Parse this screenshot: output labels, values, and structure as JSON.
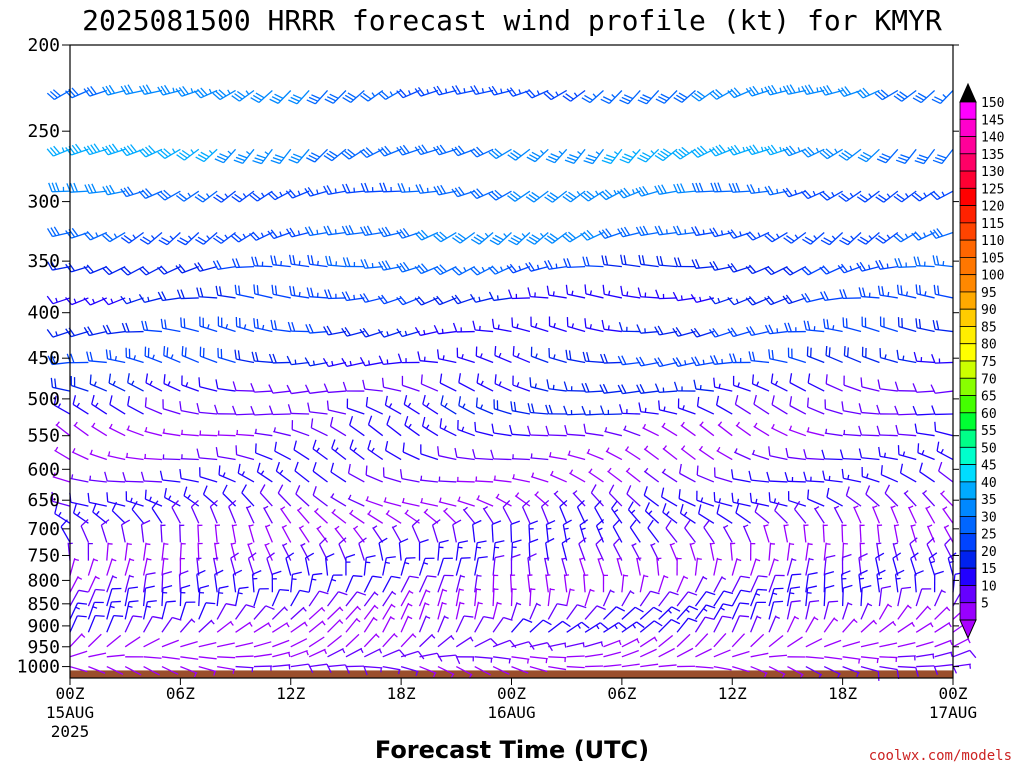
{
  "title": "2025081500 HRRR forecast wind profile (kt) for KMYR",
  "xlabel": "Forecast Time (UTC)",
  "credit": "coolwx.com/models",
  "chart_data": {
    "type": "wind-barb time-height profile",
    "y_axis": {
      "label": "",
      "scale": "log-pressure, inverted",
      "range_hpa": [
        1030,
        200
      ],
      "ticks": [
        "200",
        "250",
        "300",
        "350",
        "400",
        "450",
        "500",
        "550",
        "600",
        "650",
        "700",
        "750",
        "800",
        "850",
        "900",
        "950",
        "1000"
      ]
    },
    "x_axis": {
      "range_hours": [
        0,
        48
      ],
      "ticks": [
        {
          "hour": 0,
          "label": "00Z",
          "sub1": "15AUG",
          "sub2": "2025"
        },
        {
          "hour": 6,
          "label": "06Z",
          "sub1": "",
          "sub2": ""
        },
        {
          "hour": 12,
          "label": "12Z",
          "sub1": "",
          "sub2": ""
        },
        {
          "hour": 18,
          "label": "18Z",
          "sub1": "",
          "sub2": ""
        },
        {
          "hour": 24,
          "label": "00Z",
          "sub1": "16AUG",
          "sub2": ""
        },
        {
          "hour": 30,
          "label": "06Z",
          "sub1": "",
          "sub2": ""
        },
        {
          "hour": 36,
          "label": "12Z",
          "sub1": "",
          "sub2": ""
        },
        {
          "hour": 42,
          "label": "18Z",
          "sub1": "",
          "sub2": ""
        },
        {
          "hour": 48,
          "label": "00Z",
          "sub1": "17AUG",
          "sub2": ""
        }
      ]
    },
    "barb_time_step_hours": 1,
    "barb_levels_hpa": [
      225,
      262,
      292,
      325,
      355,
      385,
      420,
      455,
      490,
      520,
      550,
      585,
      620,
      660,
      690,
      725,
      760,
      790,
      825,
      855,
      885,
      915,
      950,
      975,
      1000
    ],
    "wind_speed_kt_by_level": [
      {
        "p": 225,
        "speed": 30,
        "dir_from": 240
      },
      {
        "p": 262,
        "speed": 35,
        "dir_from": 235
      },
      {
        "p": 292,
        "speed": 30,
        "dir_from": 250
      },
      {
        "p": 325,
        "speed": 30,
        "dir_from": 245
      },
      {
        "p": 355,
        "speed": 25,
        "dir_from": 260
      },
      {
        "p": 385,
        "speed": 20,
        "dir_from": 265
      },
      {
        "p": 420,
        "speed": 20,
        "dir_from": 270
      },
      {
        "p": 455,
        "speed": 20,
        "dir_from": 275
      },
      {
        "p": 490,
        "speed": 15,
        "dir_from": 280
      },
      {
        "p": 520,
        "speed": 15,
        "dir_from": 285
      },
      {
        "p": 550,
        "speed": 10,
        "dir_from": 290
      },
      {
        "p": 585,
        "speed": 10,
        "dir_from": 290
      },
      {
        "p": 620,
        "speed": 10,
        "dir_from": 290
      },
      {
        "p": 660,
        "speed": 10,
        "dir_from": 300
      },
      {
        "p": 690,
        "speed": 10,
        "dir_from": 320
      },
      {
        "p": 725,
        "speed": 10,
        "dir_from": 340
      },
      {
        "p": 760,
        "speed": 10,
        "dir_from": 350
      },
      {
        "p": 790,
        "speed": 10,
        "dir_from": 0
      },
      {
        "p": 825,
        "speed": 10,
        "dir_from": 10
      },
      {
        "p": 855,
        "speed": 10,
        "dir_from": 20
      },
      {
        "p": 885,
        "speed": 10,
        "dir_from": 30
      },
      {
        "p": 915,
        "speed": 10,
        "dir_from": 40
      },
      {
        "p": 950,
        "speed": 5,
        "dir_from": 60
      },
      {
        "p": 975,
        "speed": 5,
        "dir_from": 80
      },
      {
        "p": 1000,
        "speed": 5,
        "dir_from": 100
      }
    ],
    "ground_level_hpa": 1010,
    "colorbar": {
      "labels": [
        "150",
        "145",
        "140",
        "135",
        "130",
        "125",
        "120",
        "115",
        "110",
        "105",
        "100",
        "95",
        "90",
        "85",
        "80",
        "75",
        "70",
        "65",
        "60",
        "55",
        "50",
        "45",
        "40",
        "35",
        "30",
        "25",
        "20",
        "15",
        "10",
        "5"
      ],
      "colors": [
        "#ff00ff",
        "#ff00cc",
        "#ff0099",
        "#ff0066",
        "#ff0033",
        "#ff0000",
        "#ff2200",
        "#ff4400",
        "#ff6600",
        "#ff7700",
        "#ff8800",
        "#ffaa00",
        "#ffcc00",
        "#ffee00",
        "#ffff00",
        "#ccff00",
        "#88ff00",
        "#44ff00",
        "#00ff33",
        "#00ff88",
        "#00ffcc",
        "#00ddff",
        "#00aaff",
        "#0088ff",
        "#0066ff",
        "#0044ff",
        "#0022ee",
        "#2200ff",
        "#6600ff",
        "#9900ff"
      ],
      "top_arrow_color": "#000000",
      "bottom_arrow_color": "#aa00ff"
    },
    "ground_color": "#9a4e2c"
  }
}
